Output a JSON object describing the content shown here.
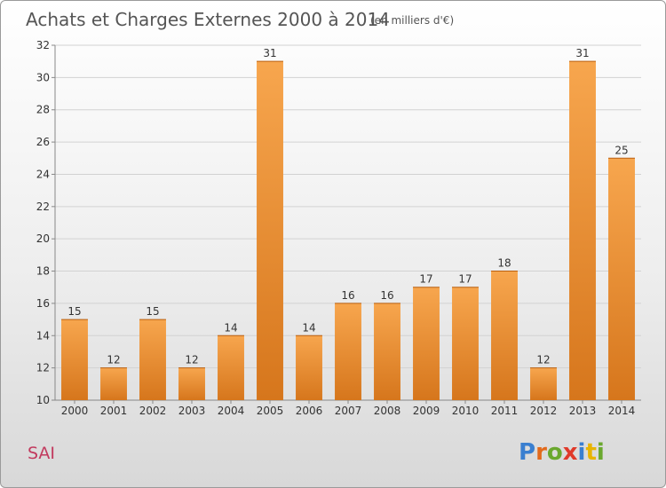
{
  "chart_data": {
    "type": "bar",
    "title": "Achats et Charges Externes 2000 à 2014",
    "subtitle": "(en milliers d'€)",
    "categories": [
      "2000",
      "2001",
      "2002",
      "2003",
      "2004",
      "2005",
      "2006",
      "2007",
      "2008",
      "2009",
      "2010",
      "2011",
      "2012",
      "2013",
      "2014"
    ],
    "values": [
      15,
      12,
      15,
      12,
      14,
      31,
      14,
      16,
      16,
      17,
      17,
      18,
      12,
      31,
      25
    ],
    "ylim": [
      10,
      32
    ],
    "yticks": [
      10,
      12,
      14,
      16,
      18,
      20,
      22,
      24,
      26,
      28,
      30,
      32
    ],
    "grid": true,
    "bar_color_light": "#f7a64e",
    "bar_color_dark": "#d6761c"
  },
  "footer": {
    "commune": "SAI",
    "logo_letters": [
      "P",
      "r",
      "o",
      "x",
      "i",
      "t",
      "i"
    ],
    "logo_colors": [
      "#3a7fd0",
      "#e26a1c",
      "#6aa82e",
      "#e03a2a",
      "#3a7fd0",
      "#e8b400",
      "#6aa82e"
    ]
  }
}
